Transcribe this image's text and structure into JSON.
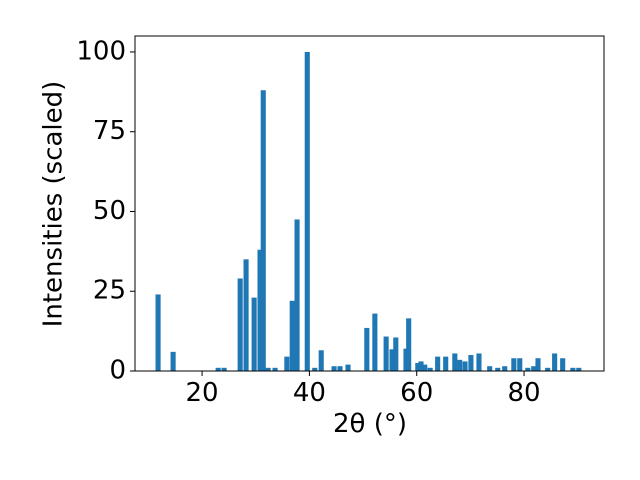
{
  "chart_data": {
    "type": "bar",
    "xlabel": "2θ (°)",
    "ylabel": "Intensities (scaled)",
    "x": [
      11.8,
      14.6,
      23.0,
      24.1,
      27.1,
      28.2,
      29.7,
      30.8,
      31.4,
      32.3,
      33.6,
      35.8,
      36.8,
      37.7,
      39.6,
      41.0,
      42.2,
      44.6,
      45.7,
      47.2,
      50.7,
      52.2,
      54.3,
      55.4,
      56.1,
      58.0,
      58.5,
      60.2,
      60.8,
      61.5,
      62.5,
      63.9,
      65.4,
      67.1,
      68.0,
      69.0,
      70.1,
      71.6,
      73.6,
      75.1,
      76.4,
      78.1,
      79.2,
      80.7,
      81.8,
      82.6,
      84.4,
      85.7,
      87.2,
      89.1,
      90.2
    ],
    "values": [
      24,
      6,
      1,
      1,
      29,
      35,
      23,
      38,
      88,
      1,
      1,
      4.5,
      22,
      47.5,
      100,
      1,
      6.5,
      1.5,
      1.5,
      2,
      13.5,
      18,
      10.8,
      6.8,
      10.5,
      7,
      16.5,
      2.5,
      3,
      2,
      1,
      4.5,
      4.5,
      5.5,
      3.5,
      3,
      5,
      5.5,
      1.5,
      1,
      1.5,
      4,
      4,
      1,
      1.5,
      4,
      1,
      5.5,
      4,
      1,
      1
    ],
    "color": "#1f77b4",
    "xlim": [
      7.5,
      94.9
    ],
    "xticks": [
      20,
      40,
      60,
      80
    ],
    "ylim": [
      0,
      105
    ],
    "yticks": [
      0,
      25,
      50,
      75,
      100
    ]
  }
}
